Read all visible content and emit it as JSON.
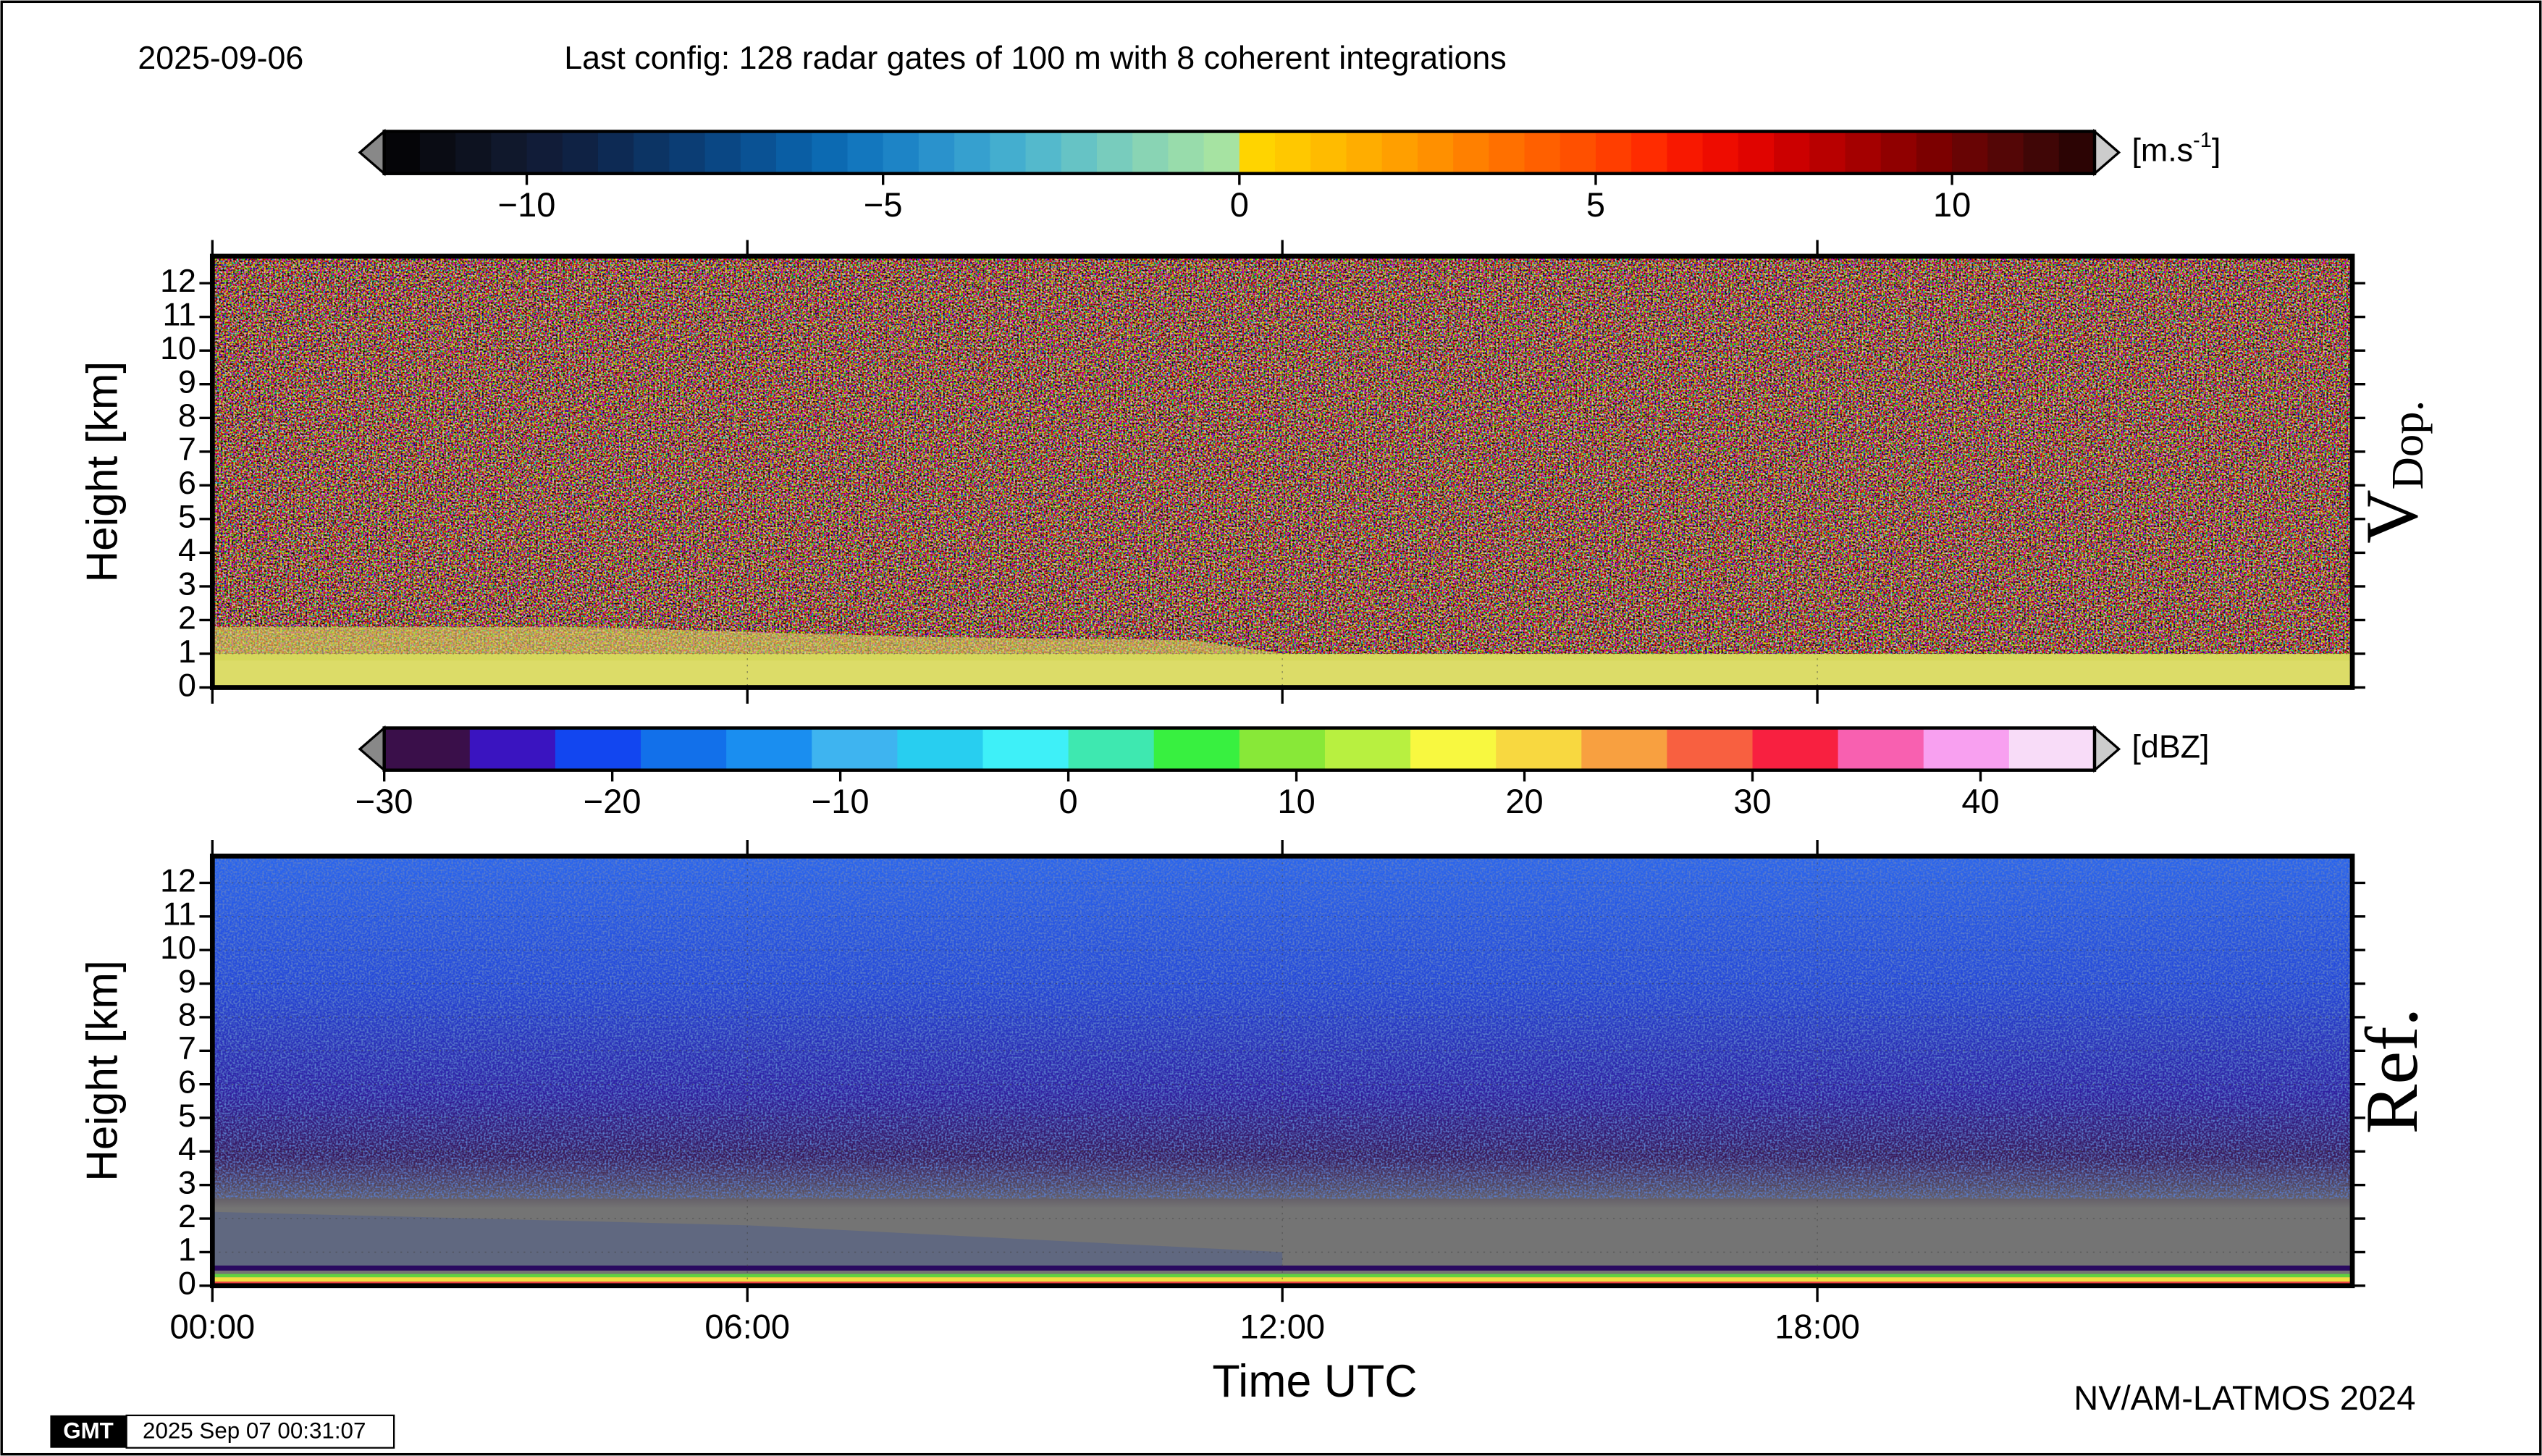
{
  "date": "2025-09-06",
  "config": "Last config: 128 radar gates of 100 m with 8 coherent integrations",
  "footer": "NV/AM-LATMOS 2024",
  "gmt_logo": "GMT",
  "timestamp": "2025 Sep 07 00:31:07",
  "chart_data": [
    {
      "type": "heatmap",
      "panel_label": "V",
      "panel_label_sub": "Dop.",
      "ylabel": "Height [km]",
      "ylim": [
        0,
        12.8
      ],
      "yticks": [
        0,
        1,
        2,
        3,
        4,
        5,
        6,
        7,
        8,
        9,
        10,
        11,
        12
      ],
      "xlim": [
        0,
        24
      ],
      "xticks": [
        0,
        6,
        12,
        18
      ],
      "colorbar": {
        "label": "[m.s",
        "label_sup": "-1",
        "label_end": "]",
        "lim": [
          -12,
          12
        ],
        "ticks": [
          {
            "value": -10,
            "label": "−10"
          },
          {
            "value": -5,
            "label": "−5"
          },
          0,
          5,
          10
        ],
        "colors": [
          "#050508",
          "#0a0c14",
          "#0d1220",
          "#10182c",
          "#111c38",
          "#0f2244",
          "#0d2a54",
          "#0c3464",
          "#0b3d74",
          "#0a4784",
          "#0a5294",
          "#0a5ea4",
          "#0c6ab2",
          "#1377be",
          "#1d84c6",
          "#2a92cc",
          "#36a0cf",
          "#44aecf",
          "#54b9cc",
          "#66c3c5",
          "#78ccbd",
          "#89d4b4",
          "#98dcab",
          "#a6e3a2",
          "#ffd400",
          "#ffc800",
          "#ffbb00",
          "#ffad00",
          "#ff9f00",
          "#ff9000",
          "#ff8000",
          "#ff7000",
          "#ff6000",
          "#ff5000",
          "#ff3e00",
          "#ff2c00",
          "#f81800",
          "#ee0c00",
          "#e00400",
          "#cc0000",
          "#b80000",
          "#a40000",
          "#900000",
          "#7c0000",
          "#680404",
          "#540606",
          "#400606",
          "#2c0404"
        ]
      }
    },
    {
      "type": "heatmap",
      "panel_label": "Ref.",
      "ylabel": "Height [km]",
      "xlabel": "Time UTC",
      "ylim": [
        0,
        12.8
      ],
      "yticks": [
        0,
        1,
        2,
        3,
        4,
        5,
        6,
        7,
        8,
        9,
        10,
        11,
        12
      ],
      "xlim": [
        0,
        24
      ],
      "xticks": [
        {
          "value": 0,
          "label": "00:00"
        },
        {
          "value": 6,
          "label": "06:00"
        },
        {
          "value": 12,
          "label": "12:00"
        },
        {
          "value": 18,
          "label": "18:00"
        }
      ],
      "colorbar": {
        "label": "[dBZ]",
        "lim": [
          -30,
          45
        ],
        "ticks": [
          {
            "value": -30,
            "label": "−30"
          },
          {
            "value": -20,
            "label": "−20"
          },
          {
            "value": -10,
            "label": "−10"
          },
          0,
          10,
          20,
          30,
          40
        ],
        "colors": [
          "#3a0f4a",
          "#3a14c0",
          "#1246f0",
          "#1270ea",
          "#1a8ef0",
          "#3eb4f0",
          "#28cef0",
          "#3ef0f8",
          "#3ee8b0",
          "#38f040",
          "#88e838",
          "#b8f040",
          "#f8f840",
          "#f8d840",
          "#f8a040",
          "#f86040",
          "#f82040",
          "#f860b0",
          "#f8a0f0",
          "#f8dcf8"
        ]
      }
    }
  ]
}
